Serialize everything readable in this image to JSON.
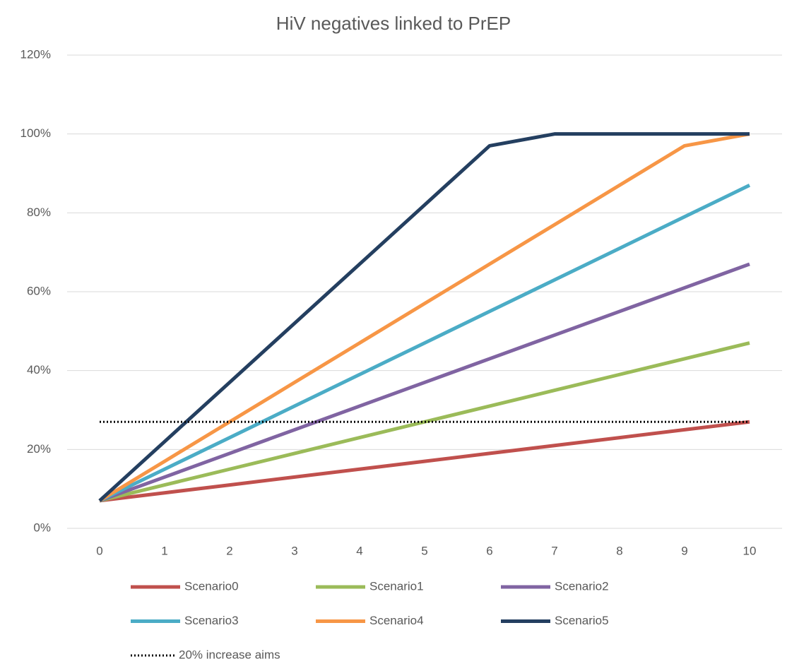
{
  "chart_data": {
    "type": "line",
    "title": "HiV negatives linked to PrEP",
    "categories": [
      "0",
      "1",
      "2",
      "3",
      "4",
      "5",
      "6",
      "7",
      "8",
      "9",
      "10"
    ],
    "series": [
      {
        "name": "Scenario0",
        "color": "#c0504d",
        "values": [
          7,
          9,
          11,
          13,
          15,
          17,
          19,
          21,
          23,
          25,
          27
        ]
      },
      {
        "name": "Scenario1",
        "color": "#9bbb59",
        "values": [
          7,
          11,
          15,
          19,
          23,
          27,
          31,
          35,
          39,
          43,
          47
        ]
      },
      {
        "name": "Scenario2",
        "color": "#8064a2",
        "values": [
          7,
          13,
          19,
          25,
          31,
          37,
          43,
          49,
          55,
          61,
          67
        ]
      },
      {
        "name": "Scenario3",
        "color": "#4bacc6",
        "values": [
          7,
          15,
          23,
          31,
          39,
          47,
          55,
          63,
          71,
          79,
          87
        ]
      },
      {
        "name": "Scenario4",
        "color": "#f79646",
        "values": [
          7,
          17,
          27,
          37,
          47,
          57,
          67,
          77,
          87,
          97,
          100
        ]
      },
      {
        "name": "Scenario5",
        "color": "#243f60",
        "values": [
          7,
          22,
          37,
          52,
          67,
          82,
          97,
          100,
          100,
          100,
          100
        ]
      },
      {
        "name": "20% increase aims",
        "color": "#000000",
        "style": "dotted",
        "values": [
          27,
          27,
          27,
          27,
          27,
          27,
          27,
          27,
          27,
          27,
          27
        ]
      }
    ],
    "ylim": [
      0,
      120
    ],
    "yticks": [
      {
        "value": 0,
        "label": "0%"
      },
      {
        "value": 20,
        "label": "20%"
      },
      {
        "value": 40,
        "label": "40%"
      },
      {
        "value": 60,
        "label": "60%"
      },
      {
        "value": 80,
        "label": "80%"
      },
      {
        "value": 100,
        "label": "100%"
      },
      {
        "value": 120,
        "label": "120%"
      }
    ],
    "grid": true,
    "legend": "bottom"
  }
}
